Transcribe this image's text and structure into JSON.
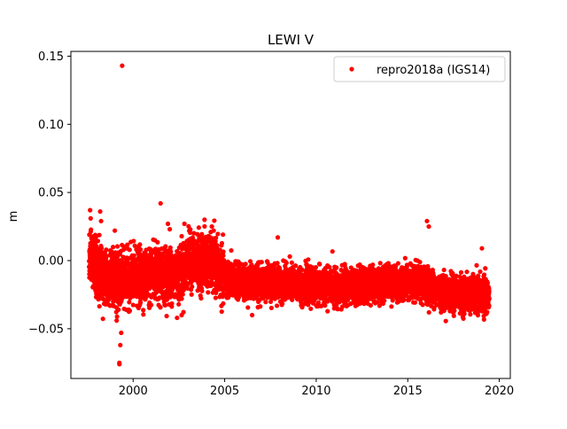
{
  "chart_data": {
    "type": "scatter",
    "title": "LEWI V",
    "xlabel": "",
    "ylabel": "m",
    "xlim": [
      1996.6,
      2020.6
    ],
    "ylim": [
      -0.0865,
      0.1535
    ],
    "x_ticks": [
      2000,
      2005,
      2010,
      2015,
      2020
    ],
    "y_ticks": [
      -0.05,
      0.0,
      0.05,
      0.1,
      0.15
    ],
    "y_tick_labels": [
      "−0.05",
      "0.00",
      "0.05",
      "0.10",
      "0.15"
    ],
    "x_tick_labels": [
      "2000",
      "2005",
      "2010",
      "2015",
      "2020"
    ],
    "grid": false,
    "legend_position": "upper right",
    "colors": {
      "series": "#ff0000",
      "axes": "#000000",
      "background": "#ffffff"
    },
    "series": [
      {
        "name": "repro2018a (IGS14)",
        "marker": "circle",
        "color": "#ff0000",
        "x_range": [
          1997.6,
          2019.45
        ],
        "mean_profile": [
          [
            1997.6,
            0.003
          ],
          [
            1998.0,
            -0.006
          ],
          [
            1998.5,
            -0.012
          ],
          [
            1999.0,
            -0.014
          ],
          [
            2000.0,
            -0.013
          ],
          [
            2001.0,
            -0.011
          ],
          [
            2002.0,
            -0.01
          ],
          [
            2002.7,
            -0.008
          ],
          [
            2003.0,
            0.0
          ],
          [
            2004.0,
            0.0
          ],
          [
            2004.5,
            -0.004
          ],
          [
            2005.0,
            -0.013
          ],
          [
            2006.0,
            -0.016
          ],
          [
            2008.0,
            -0.016
          ],
          [
            2010.0,
            -0.019
          ],
          [
            2012.0,
            -0.019
          ],
          [
            2014.0,
            -0.016
          ],
          [
            2016.0,
            -0.017
          ],
          [
            2017.0,
            -0.024
          ],
          [
            2019.0,
            -0.025
          ],
          [
            2019.45,
            -0.026
          ]
        ],
        "scatter_std": 0.008,
        "outliers": [
          [
            1999.4,
            0.143
          ],
          [
            1999.25,
            -0.075
          ],
          [
            1999.25,
            -0.076
          ],
          [
            1999.3,
            -0.062
          ],
          [
            1999.35,
            -0.053
          ],
          [
            1999.1,
            -0.044
          ],
          [
            1999.2,
            -0.036
          ],
          [
            1999.0,
            0.022
          ],
          [
            1997.65,
            0.037
          ],
          [
            1998.2,
            0.036
          ],
          [
            1998.25,
            0.029
          ],
          [
            2001.5,
            0.042
          ],
          [
            2001.9,
            0.027
          ],
          [
            2002.0,
            0.023
          ],
          [
            2002.4,
            -0.042
          ],
          [
            2002.65,
            -0.04
          ],
          [
            2002.8,
            0.027
          ],
          [
            2003.9,
            0.03
          ],
          [
            2004.3,
            0.025
          ],
          [
            2004.4,
            0.022
          ],
          [
            2006.5,
            -0.04
          ],
          [
            2007.9,
            0.017
          ],
          [
            2016.05,
            0.029
          ],
          [
            2016.15,
            0.025
          ],
          [
            2019.05,
            0.009
          ],
          [
            2019.3,
            -0.039
          ]
        ]
      }
    ]
  }
}
